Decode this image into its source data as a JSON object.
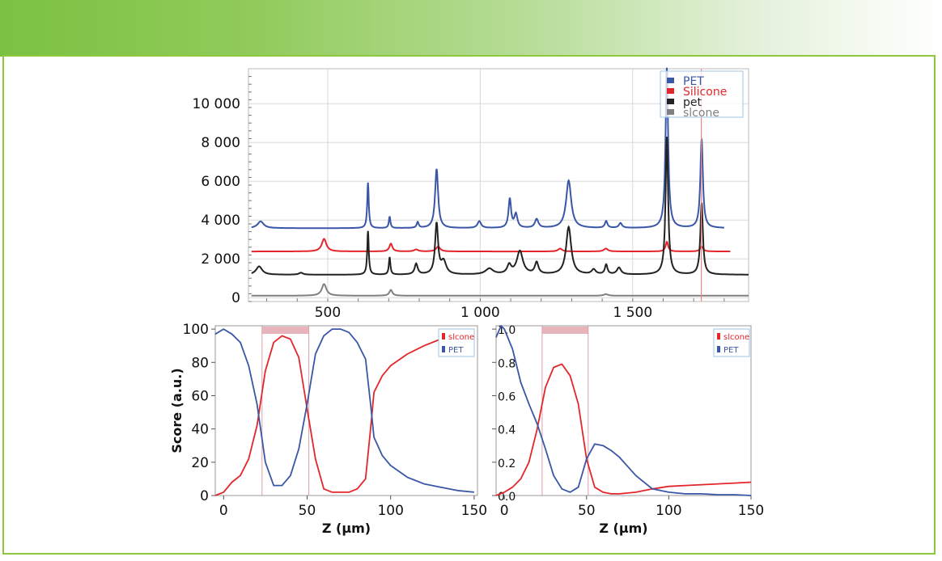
{
  "colors": {
    "banner": "#7bc142",
    "border": "#8dc63f",
    "blue": "#3a56a6",
    "red": "#e3262b",
    "black": "#222222",
    "gray": "#808080",
    "highlight": "#e8b4bc"
  },
  "chart_data": [
    {
      "type": "line",
      "xlim": [
        240,
        1880
      ],
      "ylim": [
        -200,
        11800
      ],
      "x_ticks": [
        {
          "value": 500,
          "label": "500"
        },
        {
          "value": 1000,
          "label": "1 000"
        },
        {
          "value": 1500,
          "label": "1 500"
        }
      ],
      "y_ticks": [
        {
          "value": 0,
          "label": "0"
        },
        {
          "value": 2000,
          "label": "2 000"
        },
        {
          "value": 4000,
          "label": "4 000"
        },
        {
          "value": 6000,
          "label": "6 000"
        },
        {
          "value": 8000,
          "label": "8 000"
        },
        {
          "value": 10000,
          "label": "10 000"
        }
      ],
      "grid": true,
      "legend_position": "top-right",
      "marker_line_x": 1725,
      "series": [
        {
          "name": "PET",
          "color": "#3a56a6",
          "baseline": 3580,
          "x_range": [
            250,
            1800
          ],
          "peaks": [
            [
              280,
              350,
              12
            ],
            [
              632,
              2350,
              3
            ],
            [
              703,
              600,
              3
            ],
            [
              795,
              300,
              4
            ],
            [
              857,
              3050,
              6
            ],
            [
              997,
              350,
              7
            ],
            [
              1097,
              1500,
              5
            ],
            [
              1117,
              700,
              6
            ],
            [
              1185,
              450,
              7
            ],
            [
              1290,
              2450,
              10
            ],
            [
              1413,
              350,
              5
            ],
            [
              1460,
              250,
              6
            ],
            [
              1612,
              8300,
              5
            ],
            [
              1726,
              4600,
              5
            ]
          ]
        },
        {
          "name": "Silicone",
          "color": "#e3262b",
          "baseline": 2380,
          "x_range": [
            250,
            1820
          ],
          "peaks": [
            [
              488,
              650,
              9
            ],
            [
              707,
              400,
              6
            ],
            [
              790,
              100,
              8
            ],
            [
              862,
              250,
              8
            ],
            [
              1262,
              150,
              8
            ],
            [
              1412,
              150,
              8
            ],
            [
              1612,
              500,
              5
            ],
            [
              1726,
              250,
              6
            ]
          ]
        },
        {
          "name": "pet",
          "color": "#222222",
          "baseline": 1180,
          "x_range": [
            250,
            1880
          ],
          "peaks": [
            [
              275,
              430,
              12
            ],
            [
              412,
              100,
              8
            ],
            [
              632,
              2250,
              3
            ],
            [
              703,
              900,
              3
            ],
            [
              790,
              550,
              6
            ],
            [
              857,
              2600,
              6
            ],
            [
              880,
              650,
              10
            ],
            [
              1030,
              300,
              15
            ],
            [
              1095,
              450,
              8
            ],
            [
              1130,
              1200,
              12
            ],
            [
              1185,
              600,
              7
            ],
            [
              1290,
              2450,
              10
            ],
            [
              1372,
              250,
              8
            ],
            [
              1413,
              500,
              5
            ],
            [
              1455,
              350,
              8
            ],
            [
              1612,
              7100,
              5
            ],
            [
              1726,
              3700,
              5
            ]
          ]
        },
        {
          "name": "slcone",
          "color": "#808080",
          "baseline": 100,
          "x_range": [
            250,
            1880
          ],
          "peaks": [
            [
              488,
              600,
              9
            ],
            [
              707,
              300,
              6
            ],
            [
              1412,
              80,
              8
            ]
          ]
        }
      ]
    },
    {
      "type": "line",
      "xlim": [
        -5,
        152
      ],
      "ylim": [
        0,
        102
      ],
      "xlabel": "Z (μm)",
      "ylabel": "Score (a.u.)",
      "x_ticks": [
        {
          "value": 0,
          "label": "0"
        },
        {
          "value": 50,
          "label": "50"
        },
        {
          "value": 100,
          "label": "100"
        },
        {
          "value": 150,
          "label": "150"
        }
      ],
      "y_ticks": [
        {
          "value": 0,
          "label": "0"
        },
        {
          "value": 20,
          "label": "20"
        },
        {
          "value": 40,
          "label": "40"
        },
        {
          "value": 60,
          "label": "60"
        },
        {
          "value": 80,
          "label": "80"
        },
        {
          "value": 100,
          "label": "100"
        }
      ],
      "highlight_range": [
        23,
        51
      ],
      "legend_position": "top-right",
      "series": [
        {
          "name": "slcone",
          "color": "#e3262b",
          "x": [
            -5,
            0,
            5,
            10,
            15,
            20,
            25,
            30,
            35,
            40,
            45,
            50,
            55,
            60,
            65,
            70,
            75,
            80,
            85,
            88,
            90,
            95,
            100,
            110,
            120,
            130,
            140,
            150
          ],
          "y": [
            0,
            2,
            8,
            12,
            22,
            42,
            75,
            92,
            96,
            94,
            83,
            52,
            22,
            4,
            2,
            2,
            2,
            4,
            10,
            40,
            62,
            72,
            78,
            85,
            90,
            94,
            97,
            100
          ]
        },
        {
          "name": "PET",
          "color": "#3a56a6",
          "x": [
            -5,
            0,
            5,
            10,
            15,
            20,
            25,
            30,
            35,
            40,
            45,
            50,
            55,
            60,
            65,
            70,
            75,
            80,
            85,
            88,
            90,
            95,
            100,
            110,
            120,
            130,
            140,
            150
          ],
          "y": [
            97,
            100,
            97,
            92,
            78,
            55,
            20,
            6,
            6,
            12,
            28,
            55,
            85,
            96,
            100,
            100,
            98,
            92,
            82,
            55,
            35,
            24,
            18,
            11,
            7,
            5,
            3,
            2
          ]
        }
      ]
    },
    {
      "type": "line",
      "xlim": [
        -5,
        150
      ],
      "ylim": [
        0,
        1.02
      ],
      "xlabel": "Z (μm)",
      "x_ticks": [
        {
          "value": 0,
          "label": "0"
        },
        {
          "value": 50,
          "label": "50"
        },
        {
          "value": 100,
          "label": "100"
        },
        {
          "value": 150,
          "label": "150"
        }
      ],
      "y_ticks": [
        {
          "value": 0,
          "label": "0.0"
        },
        {
          "value": 0.2,
          "label": "0.2"
        },
        {
          "value": 0.4,
          "label": "0.4"
        },
        {
          "value": 0.6,
          "label": "0.6"
        },
        {
          "value": 0.8,
          "label": "0.8"
        },
        {
          "value": 1.0,
          "label": "1.0"
        }
      ],
      "highlight_range": [
        23,
        51
      ],
      "legend_position": "top-right",
      "series": [
        {
          "name": "slcone",
          "color": "#e3262b",
          "x": [
            -5,
            0,
            5,
            10,
            15,
            20,
            25,
            30,
            35,
            40,
            45,
            50,
            55,
            60,
            65,
            70,
            80,
            90,
            100,
            110,
            120,
            130,
            140,
            150
          ],
          "y": [
            0,
            0.02,
            0.05,
            0.1,
            0.2,
            0.4,
            0.65,
            0.77,
            0.79,
            0.72,
            0.55,
            0.22,
            0.05,
            0.02,
            0.01,
            0.01,
            0.02,
            0.04,
            0.055,
            0.06,
            0.065,
            0.07,
            0.075,
            0.08
          ]
        },
        {
          "name": "PET",
          "color": "#3a56a6",
          "x": [
            -5,
            -2,
            0,
            5,
            10,
            15,
            20,
            25,
            30,
            35,
            40,
            45,
            50,
            55,
            60,
            65,
            70,
            80,
            90,
            100,
            110,
            120,
            130,
            140,
            150
          ],
          "y": [
            0.95,
            1.02,
            1.0,
            0.88,
            0.68,
            0.55,
            0.43,
            0.28,
            0.12,
            0.04,
            0.02,
            0.05,
            0.22,
            0.31,
            0.3,
            0.27,
            0.23,
            0.12,
            0.04,
            0.02,
            0.01,
            0.01,
            0.005,
            0.005,
            0.0
          ]
        }
      ]
    }
  ]
}
